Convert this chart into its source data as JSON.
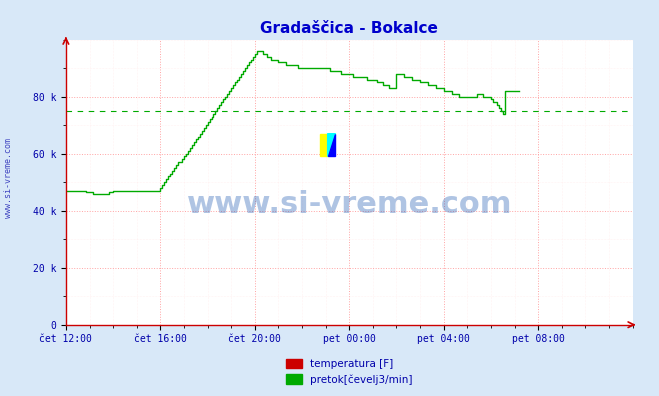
{
  "title": "Gradaščica - Bokalce",
  "title_color": "#0000cc",
  "bg_color": "#d8e8f8",
  "plot_bg_color": "#ffffff",
  "grid_color_major": "#ff9999",
  "grid_color_minor": "#ffdddd",
  "x_tick_labels": [
    "čet 12:00",
    "čet 16:00",
    "čet 20:00",
    "pet 00:00",
    "pet 04:00",
    "pet 08:00"
  ],
  "x_tick_positions": [
    0,
    48,
    96,
    144,
    192,
    240
  ],
  "y_ticks": [
    0,
    20000,
    40000,
    60000,
    80000
  ],
  "y_tick_labels": [
    "0",
    "20 k",
    "40 k",
    "60 k",
    "80 k"
  ],
  "ylim": [
    0,
    100000
  ],
  "xlim": [
    0,
    288
  ],
  "avg_line_value": 75000,
  "avg_line_color": "#00aa00",
  "flow_color": "#00aa00",
  "temp_color": "#cc0000",
  "watermark_text": "www.si-vreme.com",
  "watermark_color": "#1a56b0",
  "watermark_alpha": 0.35,
  "ylabel_text": "www.si-vreme.com",
  "legend_labels": [
    "temperatura [F]",
    "pretok[čevelj3/min]"
  ],
  "legend_colors": [
    "#cc0000",
    "#00aa00"
  ],
  "flow_data": [
    47000,
    47000,
    47000,
    47000,
    47000,
    47000,
    47000,
    47000,
    47000,
    47000,
    46500,
    46500,
    46500,
    46500,
    46000,
    46000,
    46000,
    46000,
    46000,
    46000,
    46000,
    46000,
    46500,
    46500,
    47000,
    47000,
    47000,
    47000,
    47000,
    47000,
    47000,
    47000,
    47000,
    47000,
    47000,
    47000,
    47000,
    47000,
    47000,
    47000,
    47000,
    47000,
    47000,
    47000,
    47000,
    47000,
    47000,
    47000,
    48000,
    49000,
    50000,
    51000,
    52000,
    53000,
    54000,
    55000,
    56000,
    57000,
    57000,
    58000,
    59000,
    60000,
    61000,
    62000,
    63000,
    64000,
    65000,
    66000,
    67000,
    68000,
    69000,
    70000,
    71000,
    72000,
    73000,
    74000,
    75000,
    76000,
    77000,
    78000,
    79000,
    80000,
    81000,
    82000,
    83000,
    84000,
    85000,
    86000,
    87000,
    88000,
    89000,
    90000,
    91000,
    92000,
    93000,
    94000,
    95000,
    96000,
    96000,
    96000,
    95000,
    95000,
    94000,
    94000,
    93000,
    93000,
    93000,
    93000,
    92000,
    92000,
    92000,
    92000,
    91000,
    91000,
    91000,
    91000,
    91000,
    91000,
    90000,
    90000,
    90000,
    90000,
    90000,
    90000,
    90000,
    90000,
    90000,
    90000,
    90000,
    90000,
    90000,
    90000,
    90000,
    90000,
    89000,
    89000,
    89000,
    89000,
    89000,
    89000,
    88000,
    88000,
    88000,
    88000,
    88000,
    88000,
    87000,
    87000,
    87000,
    87000,
    87000,
    87000,
    87000,
    86000,
    86000,
    86000,
    86000,
    86000,
    85000,
    85000,
    85000,
    84000,
    84000,
    84000,
    83000,
    83000,
    83000,
    83000,
    88000,
    88000,
    88000,
    88000,
    87000,
    87000,
    87000,
    87000,
    86000,
    86000,
    86000,
    86000,
    85000,
    85000,
    85000,
    85000,
    84000,
    84000,
    84000,
    84000,
    83000,
    83000,
    83000,
    83000,
    82000,
    82000,
    82000,
    82000,
    81000,
    81000,
    81000,
    81000,
    80000,
    80000,
    80000,
    80000,
    80000,
    80000,
    80000,
    80000,
    80000,
    81000,
    81000,
    81000,
    80000,
    80000,
    80000,
    80000,
    79000,
    78000,
    78000,
    77000,
    76000,
    75000,
    74000,
    82000,
    82000,
    82000,
    82000,
    82000,
    82000,
    82000,
    82000
  ]
}
